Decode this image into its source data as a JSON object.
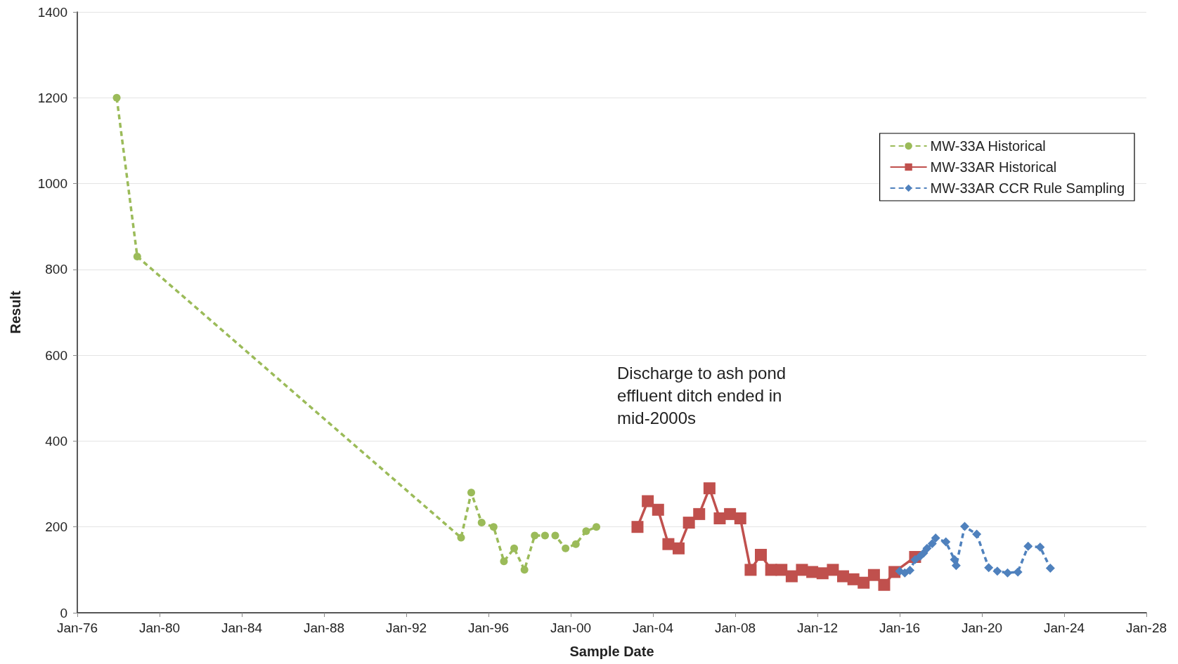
{
  "chart_data": {
    "type": "line",
    "xlabel": "Sample Date",
    "ylabel": "Result",
    "xlim": [
      "1976-01-01",
      "2028-01-01"
    ],
    "xticks": [
      {
        "value": "1976-01-01",
        "label": "Jan-76"
      },
      {
        "value": "1980-01-01",
        "label": "Jan-80"
      },
      {
        "value": "1984-01-01",
        "label": "Jan-84"
      },
      {
        "value": "1988-01-01",
        "label": "Jan-88"
      },
      {
        "value": "1992-01-01",
        "label": "Jan-92"
      },
      {
        "value": "1996-01-01",
        "label": "Jan-96"
      },
      {
        "value": "2000-01-01",
        "label": "Jan-00"
      },
      {
        "value": "2004-01-01",
        "label": "Jan-04"
      },
      {
        "value": "2008-01-01",
        "label": "Jan-08"
      },
      {
        "value": "2012-01-01",
        "label": "Jan-12"
      },
      {
        "value": "2016-01-01",
        "label": "Jan-16"
      },
      {
        "value": "2020-01-01",
        "label": "Jan-20"
      },
      {
        "value": "2024-01-01",
        "label": "Jan-24"
      },
      {
        "value": "2028-01-01",
        "label": "Jan-28"
      }
    ],
    "ylim": [
      0,
      1400
    ],
    "yticks": [
      0,
      200,
      400,
      600,
      800,
      1000,
      1200,
      1400
    ],
    "grid": "y",
    "legend": "top right",
    "annotations": [
      "Discharge to ash pond effluent ditch ended in mid-2000s"
    ],
    "series": [
      {
        "name": "MW-33A Historical",
        "color": "#9bbb59",
        "marker": "circle",
        "line_style": "dashed",
        "x": [
          "1977-12",
          "1978-12",
          "1994-09",
          "1995-03",
          "1995-09",
          "1996-04",
          "1996-10",
          "1997-04",
          "1997-10",
          "1998-04",
          "1998-10",
          "1999-04",
          "1999-10",
          "2000-04",
          "2000-10",
          "2001-04"
        ],
        "values": [
          1200,
          830,
          175,
          280,
          210,
          200,
          120,
          150,
          100,
          180,
          180,
          180,
          150,
          160,
          190,
          200
        ]
      },
      {
        "name": "MW-33AR Historical",
        "color": "#c0504d",
        "marker": "square",
        "line_style": "solid",
        "x": [
          "2003-04",
          "2003-10",
          "2004-04",
          "2004-10",
          "2005-04",
          "2005-10",
          "2006-04",
          "2006-10",
          "2007-04",
          "2007-10",
          "2008-04",
          "2008-10",
          "2009-04",
          "2009-10",
          "2010-04",
          "2010-10",
          "2011-04",
          "2011-10",
          "2012-04",
          "2012-10",
          "2013-04",
          "2013-10",
          "2014-04",
          "2014-10",
          "2015-04",
          "2015-10",
          "2016-10"
        ],
        "values": [
          200,
          260,
          240,
          160,
          150,
          210,
          230,
          290,
          220,
          230,
          220,
          100,
          135,
          100,
          100,
          85,
          100,
          95,
          92,
          100,
          85,
          78,
          70,
          88,
          65,
          95,
          130
        ]
      },
      {
        "name": "MW-33AR CCR Rule Sampling",
        "color": "#4f81bd",
        "marker": "diamond",
        "line_style": "dashed",
        "x": [
          "2016-01",
          "2016-04",
          "2016-07",
          "2016-10",
          "2017-01",
          "2017-03",
          "2017-05",
          "2017-08",
          "2017-10",
          "2018-04",
          "2018-09",
          "2018-10",
          "2019-03",
          "2019-10",
          "2020-05",
          "2020-10",
          "2021-04",
          "2021-10",
          "2022-04",
          "2022-11",
          "2023-05"
        ],
        "values": [
          97,
          93,
          99,
          124,
          132,
          139,
          150,
          161,
          174,
          165,
          124,
          110,
          201,
          183,
          105,
          97,
          93,
          95,
          155,
          153,
          104
        ]
      }
    ]
  }
}
